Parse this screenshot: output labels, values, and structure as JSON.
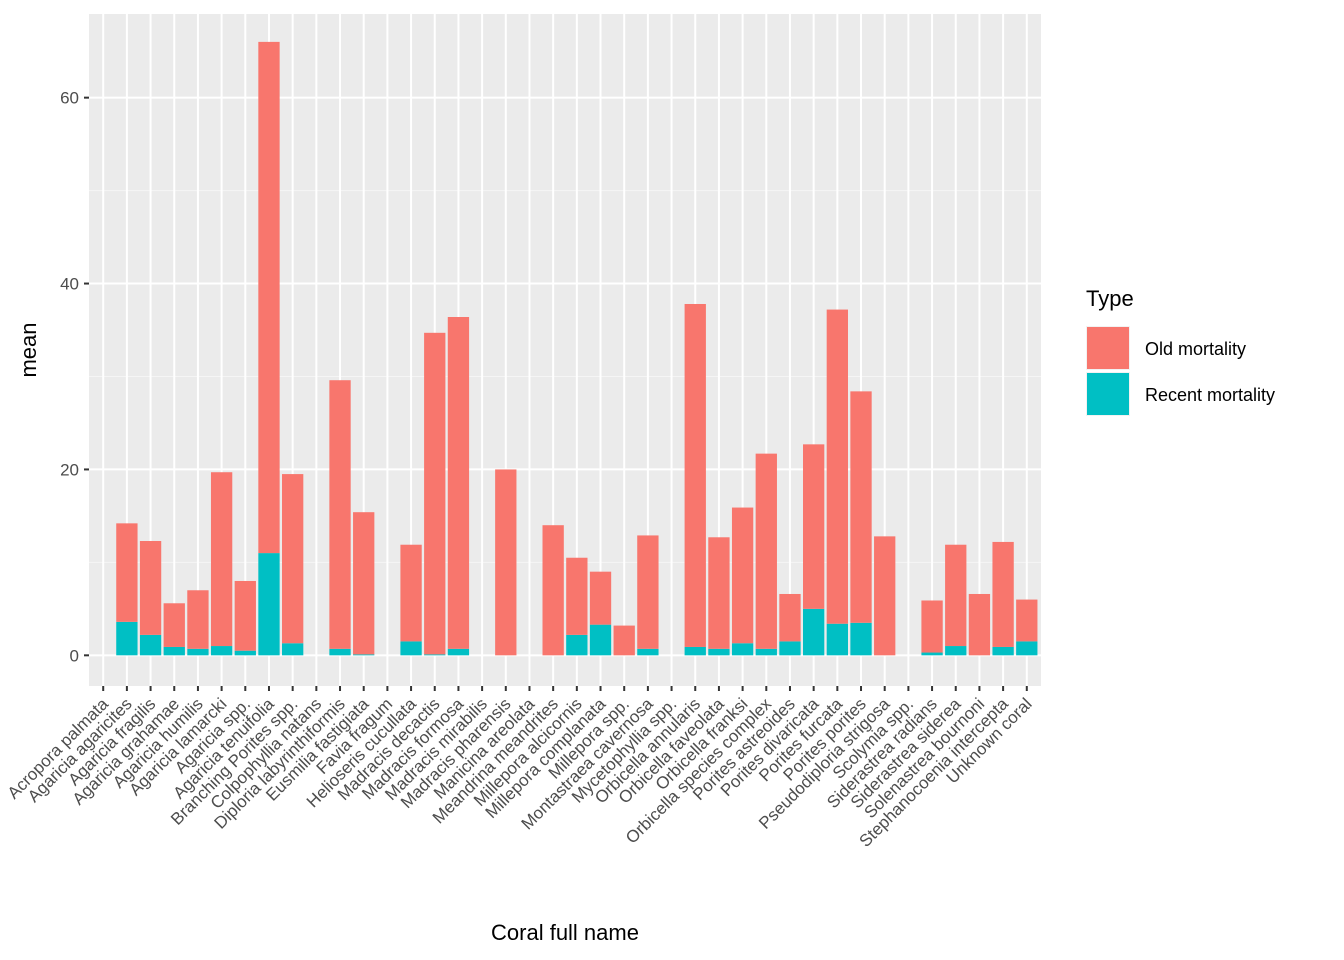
{
  "chart_data": {
    "type": "bar",
    "stacked": true,
    "xlabel": "Coral full name",
    "ylabel": "mean",
    "ylim": [
      -3.3,
      69
    ],
    "yticks": [
      0,
      20,
      40,
      60
    ],
    "grid": true,
    "legend": {
      "title": "Type",
      "position": "right"
    },
    "categories": [
      "Acropora palmata",
      "Agaricia agaricites",
      "Agaricia fragilis",
      "Agaricia grahamae",
      "Agaricia humilis",
      "Agaricia lamarcki",
      "Agaricia spp.",
      "Agaricia tenuifolia",
      "Branching Porites spp.",
      "Colpophyllia natans",
      "Diploria labyrinthiformis",
      "Eusmilia fastigiata",
      "Favia fragum",
      "Helioseris cucullata",
      "Madracis decactis",
      "Madracis formosa",
      "Madracis mirabilis",
      "Madracis pharensis",
      "Manicina areolata",
      "Meandrina meandrites",
      "Millepora alcicornis",
      "Millepora complanata",
      "Millepora spp.",
      "Montastraea cavernosa",
      "Mycetophyllia spp.",
      "Orbicella annularis",
      "Orbicella faveolata",
      "Orbicella franksi",
      "Orbicella species complex",
      "Porites astreoides",
      "Porites divaricata",
      "Porites furcata",
      "Porites porites",
      "Pseudodiploria strigosa",
      "Scolymia spp.",
      "Siderastrea radians",
      "Siderastrea siderea",
      "Solenastrea bournoni",
      "Stephanocoenia intercepta",
      "Unknown coral"
    ],
    "series": [
      {
        "name": "Old mortality",
        "color": "#F8766D",
        "values": [
          0,
          10.6,
          10.1,
          4.7,
          6.3,
          18.7,
          7.5,
          55.0,
          18.2,
          0,
          28.9,
          15.3,
          0,
          10.4,
          34.6,
          35.7,
          0,
          20.0,
          0,
          14.0,
          8.3,
          5.7,
          3.2,
          12.2,
          0,
          36.9,
          12.0,
          14.6,
          21.0,
          5.1,
          17.7,
          33.8,
          24.9,
          12.8,
          0,
          5.6,
          10.9,
          6.6,
          11.3,
          4.5
        ]
      },
      {
        "name": "Recent mortality",
        "color": "#00BFC4",
        "values": [
          0,
          3.6,
          2.2,
          0.9,
          0.7,
          1.0,
          0.5,
          11.0,
          1.3,
          0,
          0.7,
          0.1,
          0,
          1.5,
          0.1,
          0.7,
          0,
          0,
          0,
          0,
          2.2,
          3.3,
          0,
          0.7,
          0,
          0.9,
          0.7,
          1.3,
          0.7,
          1.5,
          5.0,
          3.4,
          3.5,
          0,
          0,
          0.3,
          1.0,
          0,
          0.9,
          1.5
        ]
      }
    ]
  }
}
